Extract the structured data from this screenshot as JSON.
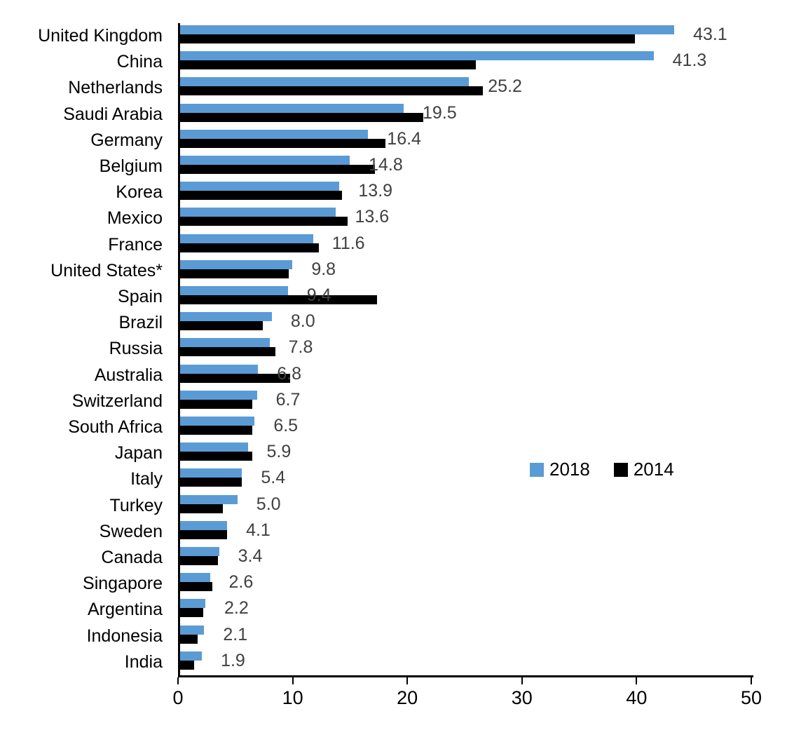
{
  "chart_data": {
    "type": "bar",
    "orientation": "horizontal",
    "title": "",
    "xlabel": "",
    "ylabel": "",
    "xlim": [
      0,
      50
    ],
    "x_ticks": [
      0,
      10,
      20,
      30,
      40,
      50
    ],
    "grid": false,
    "legend_position": "middle-right",
    "categories": [
      "United Kingdom",
      "China",
      "Netherlands",
      "Saudi Arabia",
      "Germany",
      "Belgium",
      "Korea",
      "Mexico",
      "France",
      "United States*",
      "Spain",
      "Brazil",
      "Russia",
      "Australia",
      "Switzerland",
      "South Africa",
      "Japan",
      "Italy",
      "Turkey",
      "Sweden",
      "Canada",
      "Singapore",
      "Argentina",
      "Indonesia",
      "India"
    ],
    "series": [
      {
        "name": "2018",
        "color": "#5B9BD5",
        "values": [
          43.1,
          41.3,
          25.2,
          19.5,
          16.4,
          14.8,
          13.9,
          13.6,
          11.6,
          9.8,
          9.4,
          8.0,
          7.8,
          6.8,
          6.7,
          6.5,
          5.9,
          5.4,
          5.0,
          4.1,
          3.4,
          2.6,
          2.2,
          2.1,
          1.9
        ]
      },
      {
        "name": "2014",
        "color": "#000000",
        "values": [
          39.7,
          25.8,
          26.4,
          21.2,
          17.9,
          17.0,
          14.1,
          14.6,
          12.1,
          9.5,
          17.2,
          7.2,
          8.3,
          9.6,
          6.3,
          6.3,
          6.3,
          5.4,
          3.7,
          4.1,
          3.3,
          2.8,
          2.0,
          1.5,
          1.2
        ]
      }
    ],
    "data_labels": [
      "43.1",
      "41.3",
      "25.2",
      "19.5",
      "16.4",
      "14.8",
      "13.9",
      "13.6",
      "11.6",
      "9.8",
      "9.4",
      "8.0",
      "7.8",
      "6.8",
      "6.7",
      "6.5",
      "5.9",
      "5.4",
      "5.0",
      "4.1",
      "3.4",
      "2.6",
      "2.2",
      "2.1",
      "1.9"
    ],
    "data_label_series": "2018",
    "data_label_color": "#404040"
  }
}
